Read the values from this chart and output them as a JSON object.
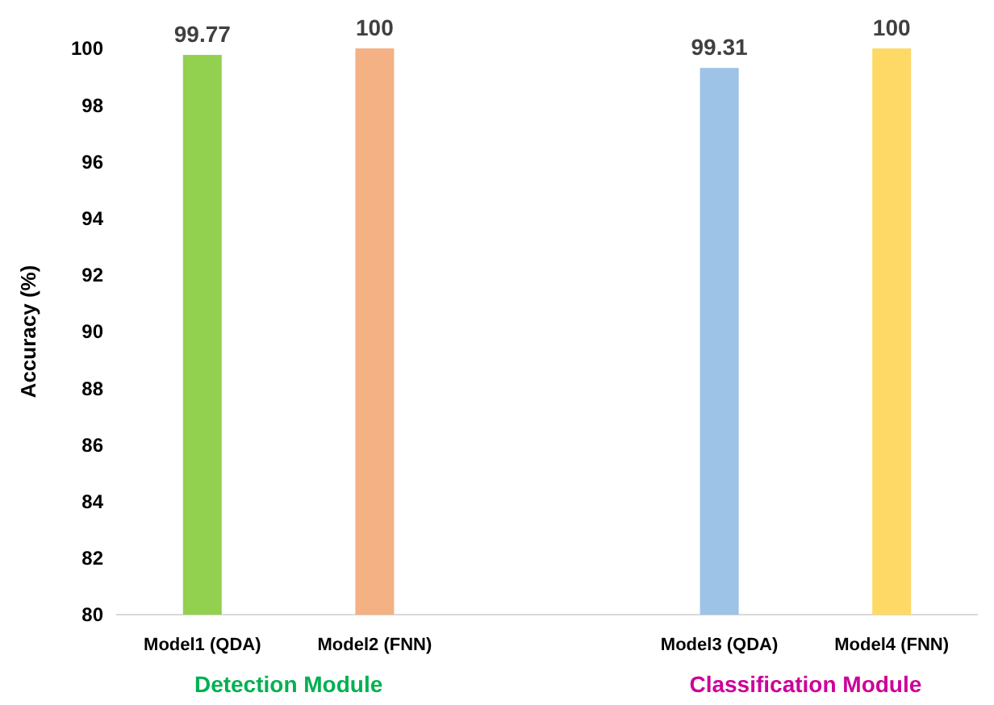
{
  "chart_data": {
    "type": "bar",
    "ylabel": "Accuracy (%)",
    "categories": [
      "Model1 (QDA)",
      "Model2 (FNN)",
      null,
      "Model3 (QDA)",
      "Model4 (FNN)"
    ],
    "values": [
      99.77,
      100,
      null,
      99.31,
      100
    ],
    "colors": [
      "#92d050",
      "#f4b183",
      null,
      "#9dc3e6",
      "#ffd966"
    ],
    "ylim": [
      80,
      100
    ],
    "yticks": [
      80,
      82,
      84,
      86,
      88,
      90,
      92,
      94,
      96,
      98,
      100
    ],
    "data_labels": true,
    "annotations": [
      "Detection Module",
      "Classification Module"
    ]
  }
}
